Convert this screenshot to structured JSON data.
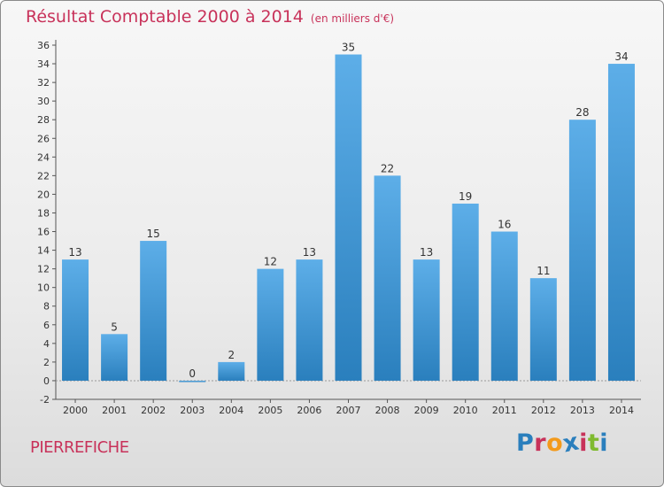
{
  "header": {
    "title": "Résultat Comptable 2000 à 2014",
    "subtitle": "(en milliers d'€)"
  },
  "footer": {
    "commune": "PIERREFICHE",
    "logo_text": "Proxiti"
  },
  "colors": {
    "title": "#c8325a",
    "bar_top": "#5daee8",
    "bar_bottom": "#2a7fbd",
    "axis": "#555555",
    "grid": "#d0d0d0",
    "logo": [
      "#2a7fbd",
      "#c8325a",
      "#f39a1b",
      "#2a7fbd",
      "#c8325a",
      "#7fba2f",
      "#2a7fbd"
    ]
  },
  "chart_data": {
    "type": "bar",
    "title": "Résultat Comptable 2000 à 2014",
    "subtitle": "(en milliers d'€)",
    "xlabel": "",
    "ylabel": "",
    "categories": [
      "2000",
      "2001",
      "2002",
      "2003",
      "2004",
      "2005",
      "2006",
      "2007",
      "2008",
      "2009",
      "2010",
      "2011",
      "2012",
      "2013",
      "2014"
    ],
    "values": [
      13,
      5,
      15,
      0,
      2,
      12,
      13,
      35,
      22,
      13,
      19,
      16,
      11,
      28,
      34
    ],
    "ylim": [
      -2,
      36
    ],
    "yticks": [
      -2,
      0,
      2,
      4,
      6,
      8,
      10,
      12,
      14,
      16,
      18,
      20,
      22,
      24,
      26,
      28,
      30,
      32,
      34,
      36
    ],
    "grid": false,
    "data_labels": true
  }
}
